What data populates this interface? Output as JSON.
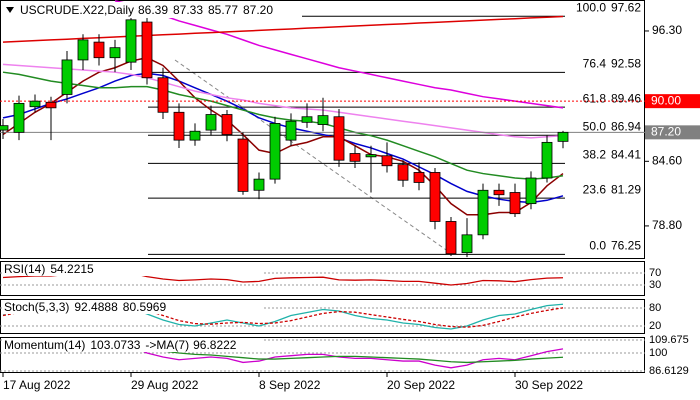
{
  "chart_data": {
    "type": "candlestick",
    "symbol": "USCRUDE.X22,Daily",
    "categories": [
      "17 Aug 2022",
      null,
      null,
      null,
      null,
      null,
      null,
      null,
      "29 Aug 2022",
      null,
      null,
      null,
      null,
      null,
      null,
      null,
      "8 Sep 2022",
      null,
      null,
      null,
      null,
      null,
      null,
      null,
      "20 Sep 2022",
      null,
      null,
      null,
      null,
      null,
      null,
      null,
      "30 Sep 2022",
      null,
      null,
      null
    ],
    "open": [
      87.4,
      87.2,
      89.5,
      89.9,
      90.6,
      93.7,
      95.3,
      93.9,
      93.5,
      97.1,
      92.1,
      89.0,
      86.5,
      87.4,
      88.8,
      86.6,
      82.0,
      83.0,
      86.5,
      88.1,
      87.9,
      88.6,
      85.3,
      85.0,
      85.1,
      84.3,
      83.6,
      83.6,
      79.2,
      76.4,
      78.0,
      82.0,
      81.8,
      80.8,
      83.1,
      86.39
    ],
    "high": [
      88.4,
      90.5,
      90.6,
      90.4,
      94.5,
      96.0,
      96.0,
      95.5,
      98.6,
      98.0,
      93.0,
      89.8,
      88.0,
      89.6,
      89.2,
      87.2,
      83.6,
      88.6,
      88.9,
      89.8,
      90.3,
      89.3,
      86.0,
      86.0,
      86.3,
      84.7,
      84.5,
      84.0,
      79.6,
      79.5,
      82.6,
      82.6,
      82.6,
      83.7,
      86.9,
      87.33
    ],
    "low": [
      86.6,
      86.5,
      89.0,
      86.5,
      89.8,
      92.8,
      93.2,
      92.6,
      92.8,
      91.5,
      88.4,
      85.8,
      86.0,
      86.9,
      86.4,
      81.6,
      81.2,
      82.6,
      86.0,
      87.6,
      87.3,
      84.1,
      84.0,
      81.8,
      83.6,
      82.3,
      82.0,
      78.5,
      76.1,
      76.0,
      77.6,
      80.6,
      79.6,
      80.3,
      82.7,
      85.77
    ],
    "close": [
      87.8,
      89.8,
      90.0,
      89.4,
      93.7,
      95.5,
      93.9,
      94.8,
      97.3,
      92.1,
      89.0,
      86.5,
      87.3,
      88.8,
      87.0,
      81.9,
      83.0,
      88.0,
      88.2,
      88.6,
      88.7,
      84.7,
      84.6,
      85.2,
      84.2,
      82.9,
      82.7,
      79.2,
      76.3,
      78.0,
      82.0,
      81.6,
      79.9,
      83.1,
      86.3,
      87.2
    ],
    "up_color": "#00cc00",
    "down_color": "#ff0000",
    "ylim": [
      75.92,
      99.08
    ],
    "yticks": [
      {
        "value": 96.3,
        "label": "96.30"
      },
      {
        "value": 84.6,
        "label": "84.60"
      },
      {
        "value": 78.8,
        "label": "78.80"
      }
    ],
    "series": [
      {
        "color": "#0000cc",
        "values": [
          88.5,
          88.8,
          89.3,
          89.8,
          90.2,
          90.7,
          91.2,
          91.8,
          92.3,
          92.5,
          92.3,
          91.8,
          91.2,
          90.6,
          90.0,
          89.3,
          88.5,
          88.0,
          87.6,
          87.3,
          87.0,
          86.7,
          86.2,
          85.8,
          85.3,
          84.8,
          84.1,
          83.4,
          82.6,
          81.9,
          81.5,
          81.2,
          81.0,
          80.9,
          81.1,
          81.5
        ]
      },
      {
        "color": "#8b0000",
        "values": [
          87.0,
          88.0,
          89.0,
          89.8,
          90.8,
          91.8,
          92.6,
          93.0,
          93.6,
          93.9,
          93.2,
          91.8,
          90.3,
          89.2,
          88.3,
          87.0,
          85.6,
          85.3,
          86.0,
          86.3,
          86.8,
          86.8,
          86.0,
          85.2,
          85.0,
          84.6,
          83.8,
          82.4,
          80.8,
          79.8,
          79.8,
          80.0,
          80.0,
          80.9,
          82.4,
          83.5
        ]
      },
      {
        "color": "#228b22",
        "values": [
          92.6,
          92.4,
          92.1,
          91.8,
          91.6,
          91.4,
          91.2,
          91.2,
          91.3,
          91.3,
          91.0,
          90.6,
          90.3,
          90.0,
          89.6,
          89.2,
          88.8,
          88.5,
          88.3,
          88.2,
          88.0,
          87.6,
          87.2,
          86.9,
          86.5,
          86.0,
          85.5,
          85.0,
          84.4,
          83.8,
          83.5,
          83.3,
          83.1,
          83.0,
          83.1,
          83.3
        ]
      },
      {
        "color": "#ee82ee",
        "values": [
          93.3,
          93.2,
          93.1,
          93.0,
          92.9,
          92.8,
          92.7,
          92.6,
          92.4,
          92.1,
          91.7,
          91.3,
          90.9,
          90.6,
          90.3,
          90.1,
          89.8,
          89.6,
          89.4,
          89.3,
          89.2,
          89.0,
          88.8,
          88.6,
          88.4,
          88.2,
          88.0,
          87.8,
          87.6,
          87.4,
          87.2,
          87.0,
          86.8,
          86.7,
          86.8,
          86.9
        ]
      },
      {
        "color": "#dd00dd",
        "values": [
          null,
          null,
          null,
          null,
          null,
          null,
          null,
          99.0,
          98.7,
          98.2,
          97.7,
          97.2,
          96.8,
          96.4,
          96.0,
          95.5,
          95.0,
          94.6,
          94.2,
          93.8,
          93.4,
          93.0,
          92.7,
          92.4,
          92.1,
          91.8,
          91.5,
          91.2,
          91.0,
          90.7,
          90.4,
          90.2,
          90.0,
          89.8,
          89.6,
          89.4
        ]
      },
      {
        "color": "#dd0000",
        "values": [
          95.3,
          95.37,
          95.43,
          95.5,
          95.56,
          95.63,
          95.69,
          95.76,
          95.83,
          95.89,
          95.96,
          96.02,
          96.09,
          96.15,
          96.22,
          96.29,
          96.35,
          96.42,
          96.48,
          96.55,
          96.61,
          96.68,
          96.75,
          96.81,
          96.88,
          96.94,
          97.01,
          97.07,
          97.14,
          97.21,
          97.27,
          97.34,
          97.4,
          97.47,
          97.53,
          97.6
        ]
      }
    ],
    "levels": [
      {
        "ratio": "100.0",
        "value": 97.62
      },
      {
        "ratio": "76.4",
        "value": 92.58
      },
      {
        "ratio": "61.8",
        "value": 89.46
      },
      {
        "ratio": "50.0",
        "value": 86.94
      },
      {
        "ratio": "38.2",
        "value": 84.41
      },
      {
        "ratio": "23.6",
        "value": 81.29
      },
      {
        "ratio": "0.0",
        "value": 76.25
      }
    ],
    "markers": [
      {
        "value": 90,
        "label": "90.00",
        "color": "#ff0000"
      },
      {
        "value": 87.2,
        "label": "87.20",
        "color": "#808080"
      }
    ],
    "indicators": [
      {
        "title": "RSI(14)",
        "ylim": [
          0,
          100
        ],
        "yticks": [
          30,
          70
        ],
        "series": [
          {
            "color": "#cc0000",
            "values": [
              55,
              58,
              60,
              60,
              65,
              68,
              66,
              67,
              70,
              58,
              50,
              45,
              47,
              50,
              48,
              40,
              42,
              52,
              54,
              55,
              56,
              47,
              46,
              47,
              45,
              42,
              42,
              36,
              30,
              35,
              45,
              44,
              41,
              48,
              53,
              54.2215
            ]
          }
        ]
      },
      {
        "title": "Stoch(5,3,3)",
        "ylim": [
          0,
          100
        ],
        "yticks": [
          20,
          80
        ],
        "series": [
          {
            "color": "#20b2aa",
            "values": [
              60,
              70,
              80,
              85,
              90,
              92,
              88,
              85,
              80,
              60,
              40,
              25,
              20,
              30,
              40,
              30,
              20,
              35,
              55,
              65,
              75,
              70,
              55,
              45,
              40,
              30,
              25,
              15,
              10,
              20,
              40,
              55,
              60,
              75,
              88,
              92.4888
            ]
          },
          {
            "color": "#cc0000",
            "dashed": true,
            "values": [
              55,
              65,
              75,
              80,
              86,
              89,
              88,
              86,
              84,
              72,
              55,
              38,
              28,
              26,
              30,
              32,
              28,
              30,
              38,
              50,
              62,
              68,
              66,
              58,
              50,
              42,
              35,
              25,
              18,
              16,
              22,
              35,
              50,
              62,
              72,
              80.5969
            ]
          }
        ]
      },
      {
        "title": "Momentum(14)",
        "ma_label": "->MA(7)",
        "ylim": [
          86.6129,
          109.675
        ],
        "yticks": [
          109.675,
          100,
          86.6129
        ],
        "series": [
          {
            "color": "#cc00cc",
            "values": [
              104,
              105,
              106,
              107,
              106,
              105,
              104,
              103,
              105,
              100,
              97,
              95,
              96,
              97,
              96,
              93,
              94,
              97,
              98,
              99,
              99,
              97,
              96,
              96,
              95,
              94,
              94,
              91,
              89,
              91,
              95,
              96,
              95,
              98,
              101,
              103.0733
            ]
          },
          {
            "color": "#228b22",
            "values": [
              102,
              103,
              104,
              105,
              105.5,
              105.5,
              105,
              104.5,
              104.5,
              103,
              101.5,
              100,
              99,
              98.5,
              97.5,
              96.5,
              95.5,
              95.5,
              96,
              96.5,
              97,
              97.5,
              97.5,
              97,
              96.5,
              96,
              95.5,
              94.5,
              93.5,
              93,
              93.5,
              94,
              94.5,
              95.5,
              96.2,
              96.8222
            ]
          }
        ]
      }
    ]
  }
}
